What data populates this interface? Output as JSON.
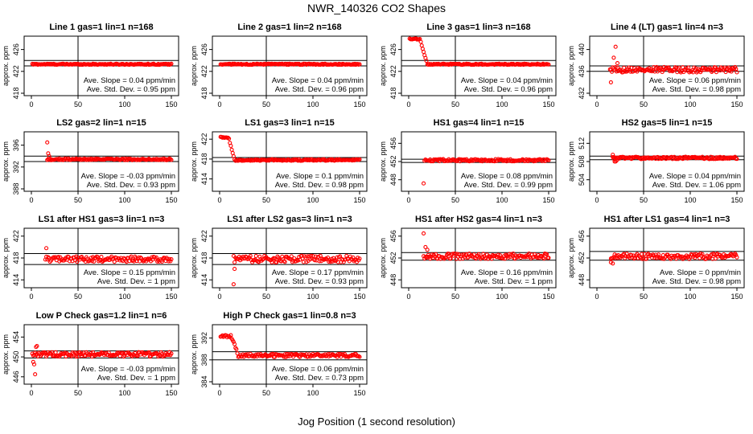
{
  "page": {
    "title": "NWR_140326  CO2 Shapes",
    "xlabel": "Jog Position (1 second resolution)"
  },
  "colors": {
    "points": "#ff0000",
    "axes": "#000000",
    "background": "#ffffff"
  },
  "chart_data": [
    {
      "type": "scatter",
      "title": "Line 1 gas=1 lin=1 n=168",
      "ylabel": "approx. ppm",
      "xlim": [
        0,
        150
      ],
      "ylim": [
        418,
        428
      ],
      "yticks": [
        418,
        422,
        426
      ],
      "xticks": [
        0,
        50,
        100,
        150
      ],
      "hlines": [
        424,
        423
      ],
      "vline": 50,
      "slope_text": "Ave. Slope = 0.04  ppm/min",
      "sd_text": "Ave. Std. Dev. = 0.95  ppm",
      "pattern": {
        "start": 1,
        "end": 150,
        "base": 423.3,
        "noise": 0.1
      }
    },
    {
      "type": "scatter",
      "title": "Line 2 gas=1 lin=2 n=168",
      "ylabel": "approx. ppm",
      "xlim": [
        0,
        150
      ],
      "ylim": [
        418,
        428
      ],
      "yticks": [
        418,
        422,
        426
      ],
      "xticks": [
        0,
        50,
        100,
        150
      ],
      "hlines": [
        424,
        423
      ],
      "vline": 50,
      "slope_text": "Ave. Slope = 0.04  ppm/min",
      "sd_text": "Ave. Std. Dev. = 0.96  ppm",
      "pattern": {
        "start": 1,
        "end": 150,
        "base": 423.3,
        "noise": 0.1
      }
    },
    {
      "type": "scatter",
      "title": "Line 3 gas=1 lin=3 n=168",
      "ylabel": "approx. ppm",
      "xlim": [
        0,
        150
      ],
      "ylim": [
        418,
        428
      ],
      "yticks": [
        418,
        422,
        426
      ],
      "xticks": [
        0,
        50,
        100,
        150
      ],
      "hlines": [
        424,
        423
      ],
      "vline": 50,
      "slope_text": "Ave. Slope = 0.04  ppm/min",
      "sd_text": "Ave. Std. Dev. = 0.96  ppm",
      "pattern": {
        "start": 1,
        "end": 150,
        "base": 423.3,
        "noise": 0.1,
        "hump": {
          "amp": 4.6,
          "end": 20
        }
      }
    },
    {
      "type": "scatter",
      "title": "Line 4 (LT) gas=1 lin=4 n=3",
      "ylabel": "approx. ppm",
      "xlim": [
        0,
        150
      ],
      "ylim": [
        432,
        442
      ],
      "yticks": [
        432,
        436,
        440
      ],
      "xticks": [
        0,
        50,
        100,
        150
      ],
      "hlines": [
        437,
        436
      ],
      "vline": 50,
      "slope_text": "Ave. Slope = 0.06  ppm/min",
      "sd_text": "Ave. Std. Dev. = 0.98  ppm",
      "pattern": {
        "start": 14,
        "end": 150,
        "base": 436.3,
        "noise": 0.5,
        "spike": {
          "x": [
            15,
            18,
            20,
            22
          ],
          "y": [
            434,
            438.5,
            440.5,
            437.5
          ]
        }
      }
    },
    {
      "type": "scatter",
      "title": "LS2 gas=2 lin=1 n=15",
      "ylabel": "approx. ppm",
      "xlim": [
        0,
        150
      ],
      "ylim": [
        388,
        398
      ],
      "yticks": [
        388,
        392,
        396
      ],
      "xticks": [
        0,
        50,
        100,
        150
      ],
      "hlines": [
        394,
        393
      ],
      "vline": 50,
      "slope_text": "Ave. Slope = -0.03  ppm/min",
      "sd_text": "Ave. Std. Dev. = 0.93  ppm",
      "pattern": {
        "start": 17,
        "end": 150,
        "base": 393.4,
        "noise": 0.15,
        "spike": {
          "x": [
            17,
            18,
            19
          ],
          "y": [
            396.5,
            394.5,
            394
          ]
        }
      }
    },
    {
      "type": "scatter",
      "title": "LS1 gas=3 lin=1 n=15",
      "ylabel": "approx. ppm",
      "xlim": [
        0,
        150
      ],
      "ylim": [
        412,
        423
      ],
      "yticks": [
        414,
        418,
        422
      ],
      "xticks": [
        0,
        50,
        100,
        150
      ],
      "hlines": [
        418.3,
        417.5
      ],
      "vline": 50,
      "slope_text": "Ave. Slope = 0.1  ppm/min",
      "sd_text": "Ave. Std. Dev. = 0.98  ppm",
      "pattern": {
        "start": 1,
        "end": 150,
        "base": 417.8,
        "noise": 0.15,
        "hump": {
          "amp": 4.6,
          "end": 16
        }
      }
    },
    {
      "type": "scatter",
      "title": "HS1 gas=4 lin=1 n=15",
      "ylabel": "approx. ppm",
      "xlim": [
        0,
        150
      ],
      "ylim": [
        446,
        458
      ],
      "yticks": [
        448,
        452,
        456
      ],
      "xticks": [
        0,
        50,
        100,
        150
      ],
      "hlines": [
        452.5,
        451.8
      ],
      "vline": 50,
      "slope_text": "Ave. Slope = 0.08  ppm/min",
      "sd_text": "Ave. Std. Dev. = 0.99  ppm",
      "pattern": {
        "start": 17,
        "end": 150,
        "base": 452.3,
        "noise": 0.25,
        "spike": {
          "x": [
            16
          ],
          "y": [
            447.2
          ]
        }
      }
    },
    {
      "type": "scatter",
      "title": "HS2 gas=5 lin=1 n=15",
      "ylabel": "approx. ppm",
      "xlim": [
        0,
        150
      ],
      "ylim": [
        502,
        514
      ],
      "yticks": [
        504,
        508,
        512
      ],
      "xticks": [
        0,
        50,
        100,
        150
      ],
      "hlines": [
        509.2,
        508.4
      ],
      "vline": 50,
      "slope_text": "Ave. Slope = 0.04  ppm/min",
      "sd_text": "Ave. Std. Dev. = 1.06  ppm",
      "pattern": {
        "start": 17,
        "end": 150,
        "base": 508.8,
        "noise": 0.25,
        "spike": {
          "x": [
            17,
            18,
            19,
            20,
            21
          ],
          "y": [
            509.5,
            508.6,
            508,
            508,
            508.2
          ]
        }
      }
    },
    {
      "type": "scatter",
      "title": "LS1 after HS1 gas=3 lin=1 n=3",
      "ylabel": "approx. ppm",
      "xlim": [
        0,
        150
      ],
      "ylim": [
        413,
        423
      ],
      "yticks": [
        414,
        418,
        422
      ],
      "xticks": [
        0,
        50,
        100,
        150
      ],
      "hlines": [
        418.8,
        416.8
      ],
      "vline": 50,
      "slope_text": "Ave. Slope = 0.15  ppm/min",
      "sd_text": "Ave. Std. Dev. = 1  ppm",
      "pattern": {
        "start": 15,
        "end": 150,
        "base": 417.8,
        "noise": 0.5,
        "spike": {
          "x": [
            16
          ],
          "y": [
            419.8
          ]
        }
      }
    },
    {
      "type": "scatter",
      "title": "LS1 after LS2 gas=3 lin=1 n=3",
      "ylabel": "approx. ppm",
      "xlim": [
        0,
        150
      ],
      "ylim": [
        413,
        423
      ],
      "yticks": [
        414,
        418,
        422
      ],
      "xticks": [
        0,
        50,
        100,
        150
      ],
      "hlines": [
        418.8,
        416.8
      ],
      "vline": 50,
      "slope_text": "Ave. Slope = 0.17  ppm/min",
      "sd_text": "Ave. Std. Dev. = 0.93  ppm",
      "pattern": {
        "start": 15,
        "end": 150,
        "base": 417.8,
        "noise": 0.6,
        "spike": {
          "x": [
            15,
            16
          ],
          "y": [
            413.2,
            416
          ]
        }
      }
    },
    {
      "type": "scatter",
      "title": "HS1 after HS2 gas=4 lin=1 n=3",
      "ylabel": "approx. ppm",
      "xlim": [
        0,
        150
      ],
      "ylim": [
        447,
        457
      ],
      "yticks": [
        448,
        452,
        456
      ],
      "xticks": [
        0,
        50,
        100,
        150
      ],
      "hlines": [
        453,
        451.6
      ],
      "vline": 50,
      "slope_text": "Ave. Slope = 0.16  ppm/min",
      "sd_text": "Ave. Std. Dev. = 1  ppm",
      "pattern": {
        "start": 16,
        "end": 150,
        "base": 452.3,
        "noise": 0.5,
        "spike": {
          "x": [
            16,
            18,
            20
          ],
          "y": [
            456.5,
            454,
            453.5
          ]
        }
      }
    },
    {
      "type": "scatter",
      "title": "HS1 after LS1 gas=4 lin=1 n=3",
      "ylabel": "approx. ppm",
      "xlim": [
        0,
        150
      ],
      "ylim": [
        447,
        457
      ],
      "yticks": [
        448,
        452,
        456
      ],
      "xticks": [
        0,
        50,
        100,
        150
      ],
      "hlines": [
        453.2,
        451.6
      ],
      "vline": 50,
      "slope_text": "Ave. Slope = 0  ppm/min",
      "sd_text": "Ave. Std. Dev. = 0.98  ppm",
      "pattern": {
        "start": 15,
        "end": 150,
        "base": 452.3,
        "noise": 0.5,
        "spike": {
          "x": [
            15,
            17
          ],
          "y": [
            451.2,
            451
          ]
        }
      }
    },
    {
      "type": "scatter",
      "title": "Low P Check gas=1.2 lin=1 n=6",
      "ylabel": "approx. ppm",
      "xlim": [
        0,
        150
      ],
      "ylim": [
        445,
        456
      ],
      "yticks": [
        446,
        450,
        454
      ],
      "xticks": [
        0,
        50,
        100,
        150
      ],
      "hlines": [
        451.2,
        449.8
      ],
      "vline": 50,
      "slope_text": "Ave. Slope = -0.03  ppm/min",
      "sd_text": "Ave. Std. Dev. = 1  ppm",
      "pattern": {
        "start": 1,
        "end": 150,
        "base": 450.5,
        "noise": 0.45,
        "spike": {
          "x": [
            2,
            3,
            4,
            5,
            6
          ],
          "y": [
            449,
            448.5,
            446.5,
            452,
            452.2
          ]
        }
      }
    },
    {
      "type": "scatter",
      "title": "High P Check gas=1 lin=0.8 n=3",
      "ylabel": "approx. ppm",
      "xlim": [
        0,
        150
      ],
      "ylim": [
        384,
        394
      ],
      "yticks": [
        384,
        388,
        392
      ],
      "xticks": [
        0,
        50,
        100,
        150
      ],
      "hlines": [
        389.5,
        388
      ],
      "vline": 50,
      "slope_text": "Ave. Slope = 0.06  ppm/min",
      "sd_text": "Ave. Std. Dev. = 0.73  ppm",
      "pattern": {
        "start": 1,
        "end": 150,
        "base": 388.8,
        "noise": 0.3,
        "hump": {
          "amp": 3.6,
          "end": 20
        }
      }
    }
  ]
}
